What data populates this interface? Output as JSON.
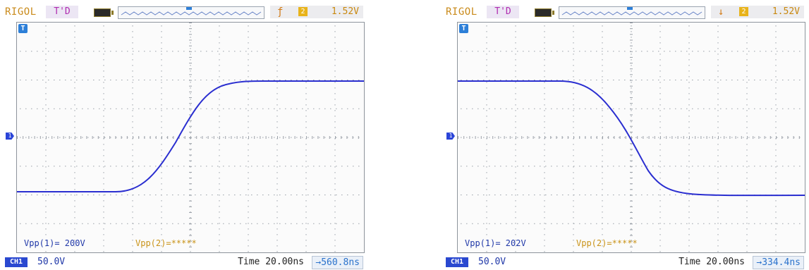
{
  "scopes": [
    {
      "brand": "RIGOL",
      "mode": "T'D",
      "trigger_edge_icon": "rising-edge-icon",
      "trigger_edge_glyph": "ƒ",
      "trigger_source": "2",
      "trigger_level": "1.52V",
      "t_marker": "T",
      "ch_marker": "1",
      "vpp1": "Vpp(1)= 200V",
      "vpp2": "Vpp(2)=*****",
      "channel": "CH1",
      "volts_div": "50.0V",
      "timebase": "Time 20.00ns",
      "offset": "→560.8ns",
      "waveform": "rising"
    },
    {
      "brand": "RIGOL",
      "mode": "T'D",
      "trigger_edge_icon": "falling-edge-icon",
      "trigger_edge_glyph": "↓",
      "trigger_source": "2",
      "trigger_level": "1.52V",
      "t_marker": "T",
      "ch_marker": "1",
      "vpp1": "Vpp(1)= 202V",
      "vpp2": "Vpp(2)=*****",
      "channel": "CH1",
      "volts_div": "50.0V",
      "timebase": "Time 20.00ns",
      "offset": "→334.4ns",
      "waveform": "falling"
    }
  ],
  "colors": {
    "trace": "#2a2ed0",
    "grid_dot": "#9aa0a8",
    "accent_blue": "#2d7fd8",
    "brand": "#c98a1a"
  }
}
